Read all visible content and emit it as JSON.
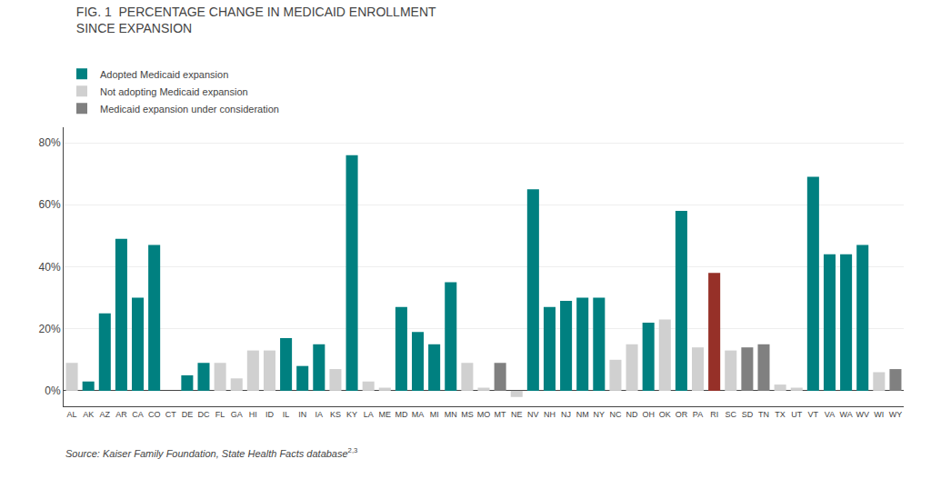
{
  "chart_data": {
    "type": "bar",
    "title": "FIG. 1  PERCENTAGE CHANGE IN MEDICAID ENROLLMENT\nSINCE EXPANSION",
    "annotations": [
      "Source: Kaiser Family Foundation, State Health Facts database",
      "2,3"
    ],
    "categories": [
      "AL",
      "AK",
      "AZ",
      "AR",
      "CA",
      "CO",
      "CT",
      "DE",
      "DC",
      "FL",
      "GA",
      "HI",
      "ID",
      "IL",
      "IN",
      "IA",
      "KS",
      "KY",
      "LA",
      "ME",
      "MD",
      "MA",
      "MI",
      "MN",
      "MS",
      "MO",
      "MT",
      "NE",
      "NV",
      "NH",
      "NJ",
      "NM",
      "NY",
      "NC",
      "ND",
      "OH",
      "OK",
      "OR",
      "PA",
      "RI",
      "SC",
      "SD",
      "TN",
      "TX",
      "UT",
      "VT",
      "VA",
      "WA",
      "WV",
      "WI",
      "WY"
    ],
    "series": [
      {
        "name": "Adopted Medicaid expansion",
        "color": "#008080",
        "values": [
          null,
          3,
          25,
          49,
          30,
          47,
          0,
          5,
          9,
          null,
          null,
          null,
          null,
          17,
          8,
          15,
          null,
          76,
          null,
          null,
          27,
          19,
          15,
          35,
          null,
          null,
          null,
          null,
          65,
          27,
          29,
          30,
          30,
          null,
          null,
          22,
          null,
          58,
          null,
          null,
          null,
          null,
          null,
          null,
          null,
          69,
          44,
          44,
          47,
          null,
          null
        ]
      },
      {
        "name": "Not adopting Medicaid expansion",
        "color": "#D0D0D0",
        "values": [
          9,
          null,
          null,
          null,
          null,
          null,
          null,
          null,
          null,
          9,
          4,
          13,
          13,
          null,
          null,
          null,
          7,
          null,
          3,
          1,
          null,
          null,
          null,
          null,
          9,
          1,
          null,
          -2,
          null,
          null,
          null,
          null,
          null,
          10,
          15,
          null,
          23,
          null,
          14,
          null,
          13,
          null,
          null,
          2,
          1,
          null,
          null,
          null,
          null,
          6,
          null
        ]
      },
      {
        "name": "Medicaid expansion under consideration",
        "color": "#808080",
        "values": [
          null,
          null,
          null,
          null,
          null,
          null,
          null,
          null,
          null,
          null,
          null,
          null,
          null,
          null,
          null,
          null,
          null,
          null,
          null,
          null,
          null,
          null,
          null,
          null,
          null,
          null,
          9,
          null,
          null,
          null,
          null,
          null,
          null,
          null,
          null,
          null,
          null,
          null,
          null,
          null,
          null,
          14,
          15,
          null,
          null,
          null,
          null,
          null,
          null,
          null,
          7
        ]
      },
      {
        "color": "#963028",
        "values": [
          null,
          null,
          null,
          null,
          null,
          null,
          null,
          null,
          null,
          null,
          null,
          null,
          null,
          null,
          null,
          null,
          null,
          null,
          null,
          null,
          null,
          null,
          null,
          null,
          null,
          null,
          null,
          null,
          null,
          null,
          null,
          null,
          null,
          null,
          null,
          null,
          null,
          null,
          null,
          38,
          null,
          null,
          null,
          null,
          null,
          null,
          null,
          null,
          null,
          null,
          null
        ]
      }
    ],
    "stacked": true,
    "legend": "top left",
    "ylim": [
      -5,
      85
    ],
    "yticks": [
      {
        "value": 0,
        "label": "0%"
      },
      {
        "value": 20,
        "label": "20%"
      },
      {
        "value": 40,
        "label": "40%"
      },
      {
        "value": 60,
        "label": "60%"
      },
      {
        "value": 80,
        "label": "80%"
      }
    ],
    "grid": true
  }
}
